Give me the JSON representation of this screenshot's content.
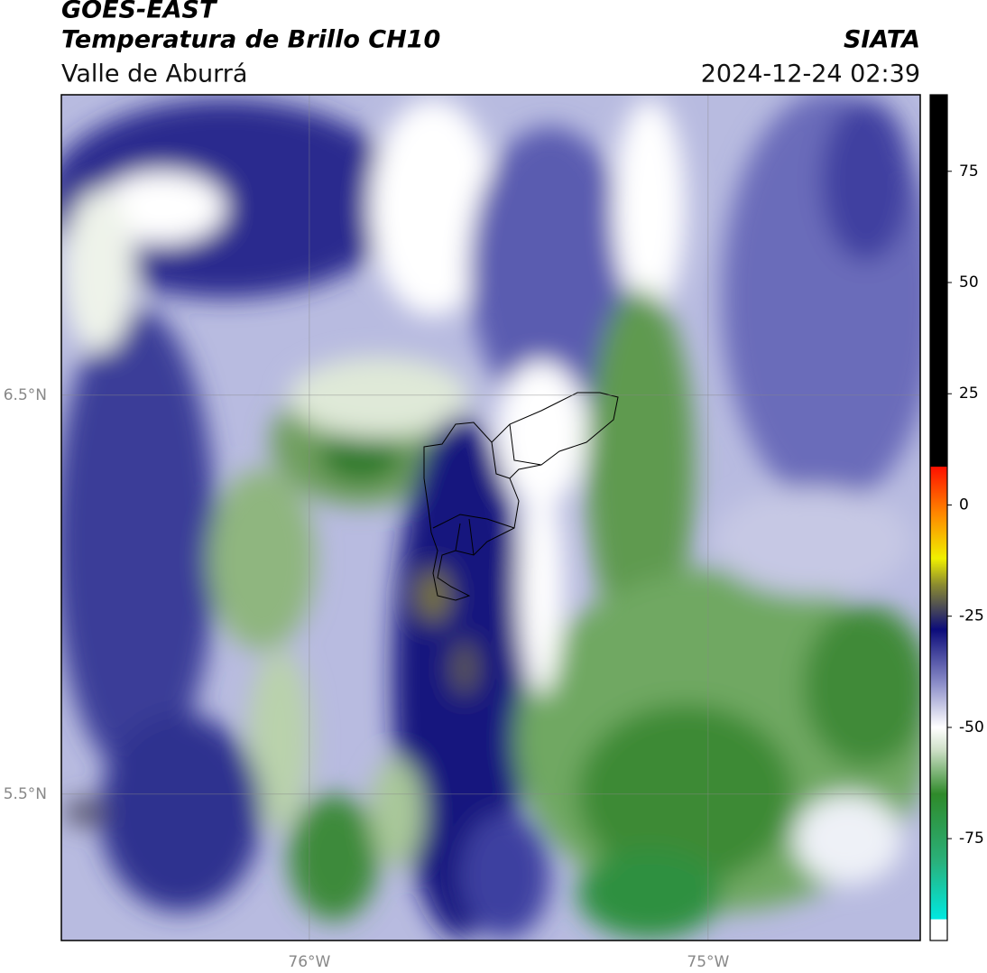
{
  "header": {
    "title": "GOES-EAST",
    "subtitle": "Temperatura de Brillo CH10",
    "region": "Valle de Aburrá",
    "source": "SIATA",
    "timestamp": "2024-12-24 02:39"
  },
  "map": {
    "lonlim": [
      -76.622,
      -74.468
    ],
    "latlim": [
      5.133,
      7.253
    ],
    "lon_ticks": [
      {
        "value": -76,
        "label": "76°W"
      },
      {
        "value": -75,
        "label": "75°W"
      }
    ],
    "lat_ticks": [
      {
        "value": 6.5,
        "label": "6.5°N"
      },
      {
        "value": 5.5,
        "label": "5.5°N"
      }
    ]
  },
  "colorbar": {
    "lim": [
      -97.9,
      92.2
    ],
    "ticks": [
      75,
      50,
      25,
      0,
      -25,
      -50,
      -75
    ],
    "stops": [
      {
        "value": -97.9,
        "color": "#ffffff"
      },
      {
        "value": -93.1,
        "color": "#ffffff"
      },
      {
        "value": -93.1,
        "color": "#00e8e0"
      },
      {
        "value": -80,
        "color": "#2ab07a"
      },
      {
        "value": -65,
        "color": "#2f8a2a"
      },
      {
        "value": -55,
        "color": "#cfe0c8"
      },
      {
        "value": -50,
        "color": "#ffffff"
      },
      {
        "value": -40,
        "color": "#8a8cc8"
      },
      {
        "value": -28,
        "color": "#0c0c7a"
      },
      {
        "value": -18,
        "color": "#8a8a30"
      },
      {
        "value": -12,
        "color": "#f0f000"
      },
      {
        "value": -2,
        "color": "#ff8800"
      },
      {
        "value": 8.6,
        "color": "#ff1000"
      },
      {
        "value": 8.6,
        "color": "#000000"
      },
      {
        "value": 92.2,
        "color": "#000000"
      }
    ]
  }
}
